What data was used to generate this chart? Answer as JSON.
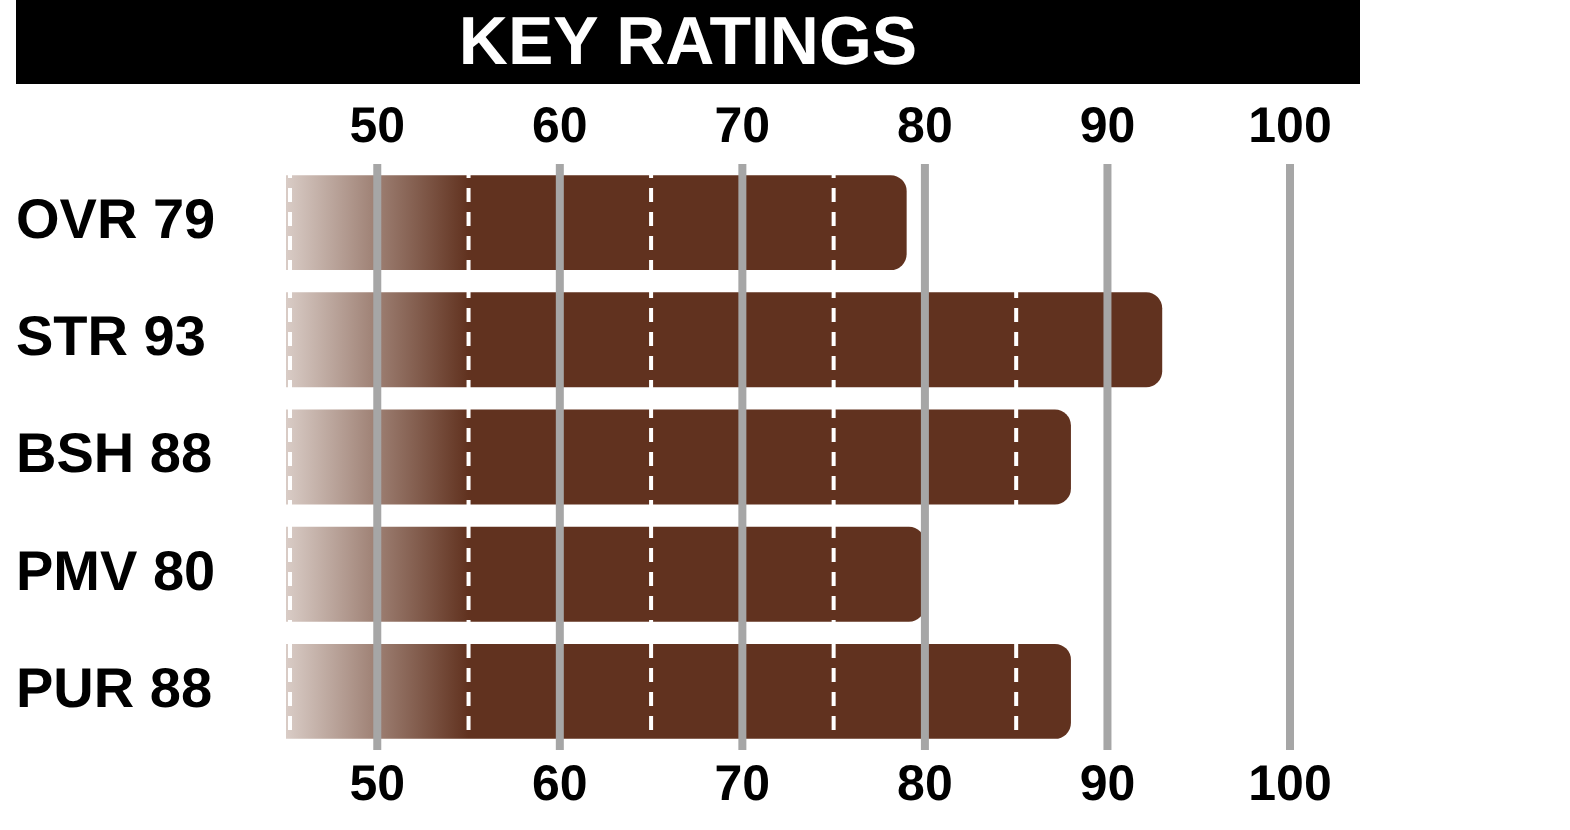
{
  "chart_data": {
    "type": "bar",
    "orientation": "horizontal",
    "title": "KEY RATINGS",
    "categories": [
      "OVR 79",
      "STR 93",
      "BSH 88",
      "PMV 80",
      "PUR 88"
    ],
    "values": [
      79,
      93,
      88,
      80,
      88
    ],
    "color": "#61321f",
    "xlim": [
      45,
      100
    ],
    "xticks": [
      {
        "value": 45,
        "label": null
      },
      50,
      {
        "value": 55,
        "label": null
      },
      60,
      {
        "value": 65,
        "label": null
      },
      70,
      {
        "value": 75,
        "label": null
      },
      80,
      {
        "value": 85,
        "label": null
      },
      90,
      100
    ],
    "x2lim": [
      45,
      100
    ],
    "x2ticks": [
      50,
      60,
      70,
      80,
      90,
      100
    ],
    "grid": "x",
    "legend": false
  }
}
